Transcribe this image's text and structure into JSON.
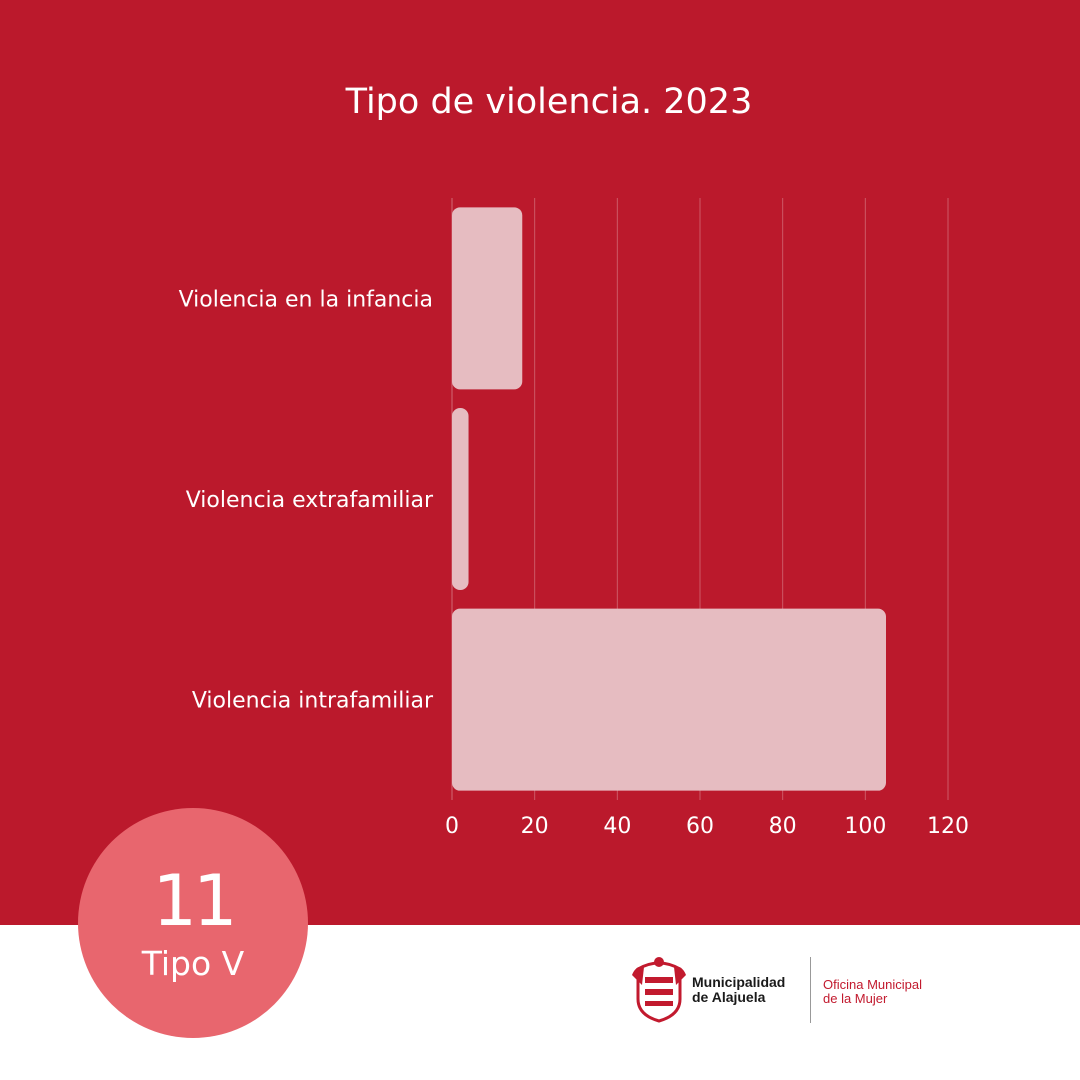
{
  "chart_data": {
    "type": "bar",
    "orientation": "horizontal",
    "title": "Tipo de violencia. 2023",
    "categories": [
      "Violencia en la infancia",
      "Violencia extrafamiliar",
      "Violencia intrafamiliar"
    ],
    "values": [
      17,
      4,
      105
    ],
    "xlim": [
      0,
      120
    ],
    "xticks": [
      "0",
      "20",
      "40",
      "60",
      "80",
      "100",
      "120"
    ],
    "grid": true,
    "bar_color": "#e6bcc1"
  },
  "badge": {
    "number": "11",
    "label": "Tipo V"
  },
  "logo": {
    "org_line1": "Municipalidad",
    "org_line2": "de Alajuela",
    "office_line1": "Oficina Municipal",
    "office_line2": "de la Mujer"
  },
  "colors": {
    "background": "#bb192c",
    "badge": "#e8666e",
    "bars": "#e6bcc1",
    "text": "#ffffff"
  }
}
